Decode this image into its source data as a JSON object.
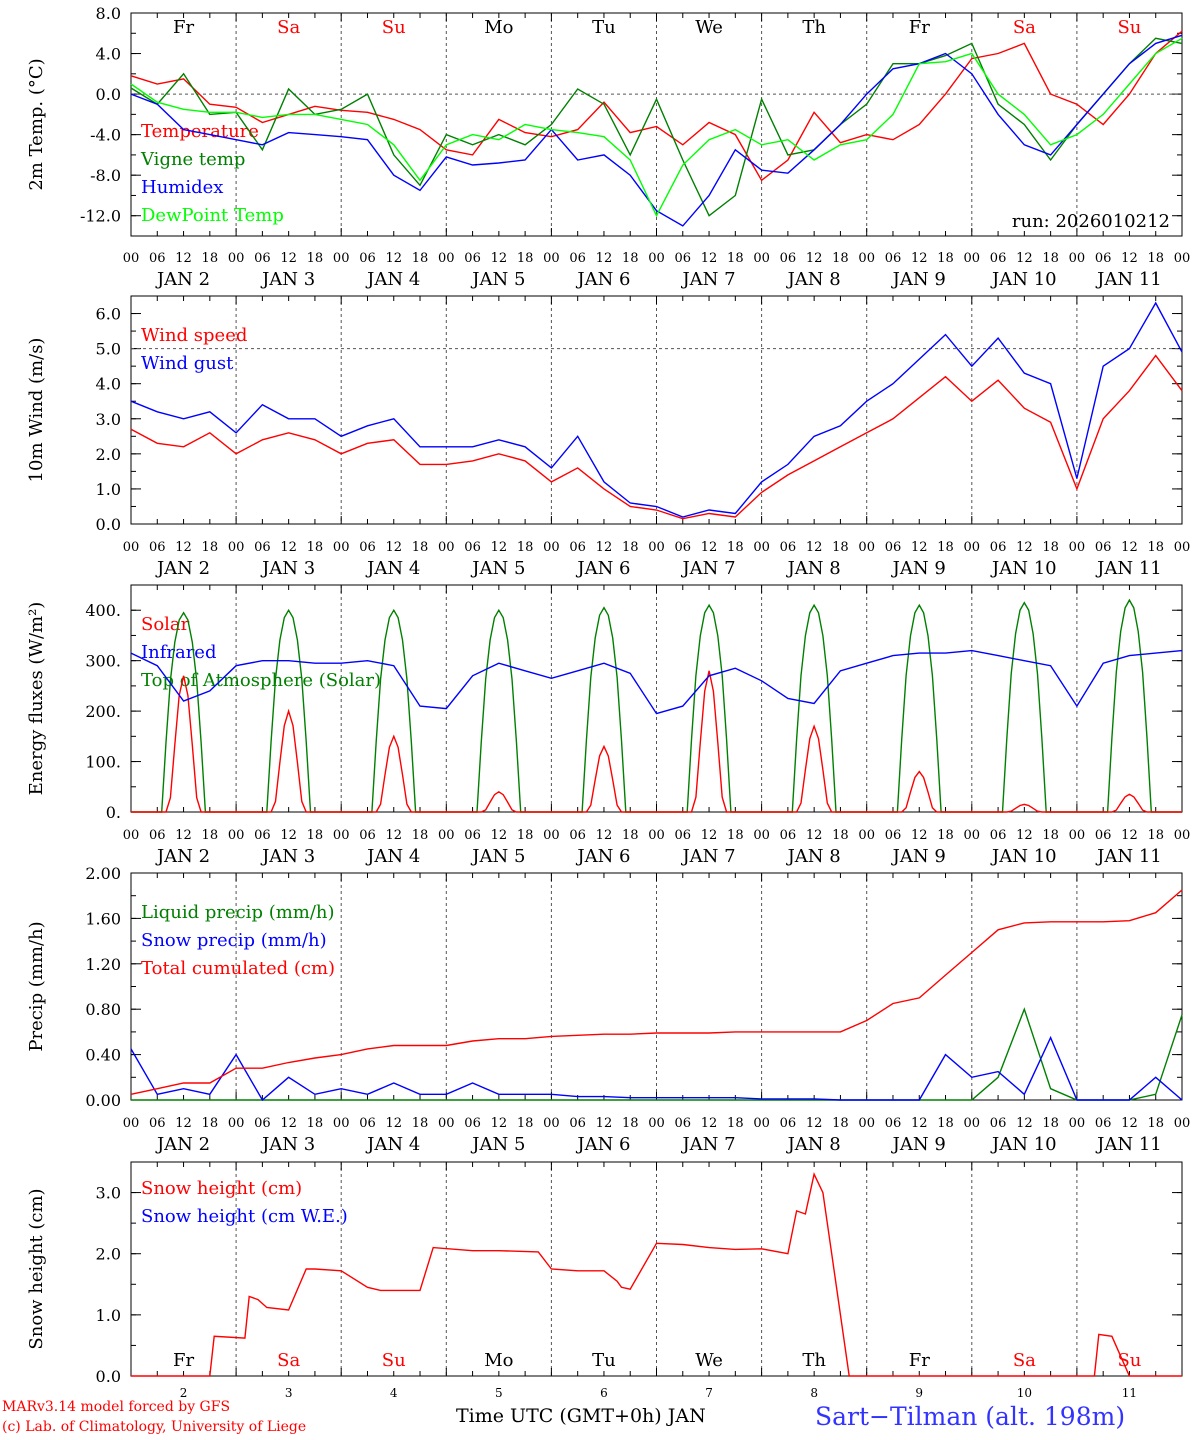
{
  "run_label": "run: 2026010212",
  "footer": {
    "credit_line1": "MARv3.14 model forced by GFS",
    "credit_line2": "(c) Lab. of Climatology, University of Liege",
    "xaxis_title": "Time UTC (GMT+0h) JAN",
    "station": "Sart−Tilman (alt. 198m)"
  },
  "hour_ticks": [
    "00",
    "06",
    "12",
    "18"
  ],
  "day_labels": [
    "JAN  2",
    "JAN  3",
    "JAN  4",
    "JAN  5",
    "JAN  6",
    "JAN  7",
    "JAN  8",
    "JAN  9",
    "JAN 10",
    "JAN 11"
  ],
  "weekdays": [
    "Fr",
    "Sa",
    "Su",
    "Mo",
    "Tu",
    "We",
    "Th",
    "Fr",
    "Sa",
    "Su"
  ],
  "weekday_colors": [
    "#000000",
    "#ff0000",
    "#ff0000",
    "#000000",
    "#000000",
    "#000000",
    "#000000",
    "#000000",
    "#ff0000",
    "#ff0000"
  ],
  "bottom_day_numbers": [
    "2",
    "3",
    "4",
    "5",
    "6",
    "7",
    "8",
    "9",
    "10",
    "11"
  ],
  "colors": {
    "red": "#ff0000",
    "green": "#008000",
    "blue": "#0000ff",
    "lightgreen": "#00ff00"
  },
  "chart_data": [
    {
      "type": "line",
      "ylabel": "2m Temp. (°C)",
      "ylim": [
        -14,
        8
      ],
      "yticks": [
        "8.0",
        "4.0",
        "0.0",
        "-4.0",
        "-8.0",
        "-12.0"
      ],
      "x_unit": "hours since JAN 2 00 UTC",
      "x": [
        0,
        6,
        12,
        18,
        24,
        30,
        36,
        42,
        48,
        54,
        60,
        66,
        72,
        78,
        84,
        90,
        96,
        102,
        108,
        114,
        120,
        126,
        132,
        138,
        144,
        150,
        156,
        162,
        168,
        174,
        180,
        186,
        192,
        198,
        204,
        210,
        216,
        222,
        228,
        234,
        240
      ],
      "series": [
        {
          "name": "Temperature",
          "color": "red",
          "values": [
            1.8,
            1.0,
            1.5,
            -1.0,
            -1.3,
            -2.8,
            -2.0,
            -1.2,
            -1.6,
            -1.8,
            -2.5,
            -3.5,
            -5.5,
            -6.0,
            -2.5,
            -3.8,
            -4.2,
            -3.5,
            -0.8,
            -3.8,
            -3.2,
            -5.0,
            -2.8,
            -4.0,
            -8.5,
            -6.5,
            -1.8,
            -4.8,
            -4.0,
            -4.5,
            -3.0,
            0.0,
            3.5,
            4.0,
            5.0,
            0.0,
            -1.0,
            -3.0,
            0.0,
            4.0,
            6.2
          ]
        },
        {
          "name": "Vigne temp",
          "color": "green",
          "values": [
            0.6,
            -1.0,
            2.0,
            -2.0,
            -1.8,
            -5.5,
            0.5,
            -2.0,
            -1.5,
            0.0,
            -6.0,
            -9.0,
            -4.0,
            -5.0,
            -4.0,
            -5.0,
            -3.0,
            0.5,
            -1.0,
            -6.0,
            -0.5,
            -6.5,
            -12.0,
            -10.0,
            -0.5,
            -6.0,
            -5.5,
            -3.0,
            -1.0,
            3.0,
            3.0,
            3.8,
            5.0,
            -1.0,
            -3.0,
            -6.5,
            -3.0,
            0.0,
            3.0,
            5.5,
            5.0
          ]
        },
        {
          "name": "Humidex",
          "color": "blue",
          "values": [
            0.0,
            -1.0,
            -3.5,
            -4.0,
            -4.5,
            -5.0,
            -3.8,
            -4.0,
            -4.2,
            -4.5,
            -8.0,
            -9.5,
            -6.2,
            -7.0,
            -6.8,
            -6.5,
            -3.5,
            -6.5,
            -6.0,
            -8.0,
            -11.5,
            -13.0,
            -10.0,
            -5.5,
            -7.5,
            -7.8,
            -5.5,
            -3.0,
            0.0,
            2.5,
            3.0,
            4.0,
            2.0,
            -2.0,
            -5.0,
            -6.0,
            -3.0,
            0.0,
            3.0,
            5.0,
            5.8
          ]
        },
        {
          "name": "DewPoint Temp",
          "color": "lightgreen",
          "values": [
            1.0,
            -0.8,
            -1.5,
            -1.8,
            -1.8,
            -2.3,
            -2.0,
            -2.0,
            -2.5,
            -3.0,
            -5.0,
            -8.5,
            -5.0,
            -4.0,
            -4.5,
            -3.0,
            -3.5,
            -3.8,
            -4.2,
            -6.5,
            -12.0,
            -7.0,
            -4.5,
            -3.5,
            -5.0,
            -4.5,
            -6.5,
            -5.0,
            -4.5,
            -2.0,
            3.0,
            3.2,
            4.0,
            0.0,
            -2.0,
            -5.0,
            -4.0,
            -2.0,
            1.0,
            4.0,
            5.5
          ]
        }
      ]
    },
    {
      "type": "line",
      "ylabel": "10m Wind (m/s)",
      "ylim": [
        0,
        6.5
      ],
      "yticks": [
        "6.0",
        "5.0",
        "4.0",
        "3.0",
        "2.0",
        "1.0",
        "0.0"
      ],
      "x_unit": "hours since JAN 2 00 UTC",
      "x": [
        0,
        6,
        12,
        18,
        24,
        30,
        36,
        42,
        48,
        54,
        60,
        66,
        72,
        78,
        84,
        90,
        96,
        102,
        108,
        114,
        120,
        126,
        132,
        138,
        144,
        150,
        156,
        162,
        168,
        174,
        180,
        186,
        192,
        198,
        204,
        210,
        216,
        222,
        228,
        234,
        240
      ],
      "series": [
        {
          "name": "Wind speed",
          "color": "red",
          "values": [
            2.7,
            2.3,
            2.2,
            2.6,
            2.0,
            2.4,
            2.6,
            2.4,
            2.0,
            2.3,
            2.4,
            1.7,
            1.7,
            1.8,
            2.0,
            1.8,
            1.2,
            1.6,
            1.0,
            0.5,
            0.4,
            0.15,
            0.3,
            0.2,
            0.9,
            1.4,
            1.8,
            2.2,
            2.6,
            3.0,
            3.6,
            4.2,
            3.5,
            4.1,
            3.3,
            2.9,
            1.0,
            3.0,
            3.8,
            4.8,
            3.8
          ]
        },
        {
          "name": "Wind gust",
          "color": "blue",
          "values": [
            3.5,
            3.2,
            3.0,
            3.2,
            2.6,
            3.4,
            3.0,
            3.0,
            2.5,
            2.8,
            3.0,
            2.2,
            2.2,
            2.2,
            2.4,
            2.2,
            1.6,
            2.5,
            1.2,
            0.6,
            0.5,
            0.2,
            0.4,
            0.3,
            1.2,
            1.7,
            2.5,
            2.8,
            3.5,
            4.0,
            4.7,
            5.4,
            4.5,
            5.3,
            4.3,
            4.0,
            1.3,
            4.5,
            5.0,
            6.3,
            4.9
          ]
        }
      ]
    },
    {
      "type": "line",
      "ylabel": "Energy fluxes (W/m²)",
      "ylim": [
        0,
        450
      ],
      "yticks": [
        "400.",
        "300.",
        "200.",
        "100.",
        "0."
      ],
      "x_unit": "hours since JAN 2 00 UTC",
      "solar_peak_values": [
        270,
        200,
        150,
        40,
        130,
        280,
        170,
        80,
        15,
        35
      ],
      "toa_peak_values": [
        395,
        400,
        400,
        400,
        405,
        410,
        410,
        410,
        415,
        420
      ],
      "series": [
        {
          "name": "Solar",
          "color": "red"
        },
        {
          "name": "Infrared",
          "color": "blue",
          "x": [
            0,
            6,
            12,
            18,
            24,
            30,
            36,
            42,
            48,
            54,
            60,
            66,
            72,
            78,
            84,
            90,
            96,
            102,
            108,
            114,
            120,
            126,
            132,
            138,
            144,
            150,
            156,
            162,
            168,
            174,
            180,
            186,
            192,
            198,
            204,
            210,
            216,
            222,
            228,
            234,
            240
          ],
          "values": [
            315,
            290,
            220,
            240,
            290,
            300,
            300,
            295,
            295,
            300,
            290,
            210,
            205,
            270,
            295,
            280,
            265,
            280,
            295,
            275,
            195,
            210,
            270,
            285,
            260,
            225,
            215,
            280,
            295,
            310,
            315,
            315,
            320,
            310,
            300,
            290,
            210,
            295,
            310,
            315,
            320
          ]
        },
        {
          "name": "Top of Atmosphere (Solar)",
          "color": "green"
        }
      ]
    },
    {
      "type": "line",
      "ylabel": "Precip (mm/h)",
      "ylim": [
        0,
        2.0
      ],
      "yticks": [
        "2.00",
        "1.60",
        "1.20",
        "0.80",
        "0.40",
        "0.00"
      ],
      "x_unit": "hours since JAN 2 00 UTC",
      "x": [
        0,
        6,
        12,
        18,
        24,
        30,
        36,
        42,
        48,
        54,
        60,
        66,
        72,
        78,
        84,
        90,
        96,
        102,
        108,
        114,
        120,
        126,
        132,
        138,
        144,
        150,
        156,
        162,
        168,
        174,
        180,
        186,
        192,
        198,
        204,
        210,
        216,
        222,
        228,
        234,
        240
      ],
      "series": [
        {
          "name": "Liquid precip (mm/h)",
          "color": "green",
          "values": [
            0,
            0,
            0,
            0,
            0,
            0,
            0,
            0,
            0,
            0,
            0,
            0,
            0,
            0,
            0,
            0,
            0,
            0,
            0,
            0,
            0,
            0,
            0,
            0,
            0,
            0,
            0,
            0,
            0,
            0,
            0,
            0,
            0,
            0.2,
            0.8,
            0.1,
            0,
            0,
            0,
            0.05,
            0.75
          ]
        },
        {
          "name": "Snow precip (mm/h)",
          "color": "blue",
          "values": [
            0.45,
            0.05,
            0.1,
            0.05,
            0.4,
            0.0,
            0.2,
            0.05,
            0.1,
            0.05,
            0.15,
            0.05,
            0.05,
            0.15,
            0.05,
            0.05,
            0.05,
            0.03,
            0.03,
            0.02,
            0.02,
            0.02,
            0.02,
            0.02,
            0.01,
            0.01,
            0.01,
            0.0,
            0.0,
            0.0,
            0.0,
            0.4,
            0.2,
            0.25,
            0.05,
            0.55,
            0.0,
            0.0,
            0.0,
            0.2,
            0.0
          ]
        },
        {
          "name": "Total cumulated (cm)",
          "color": "red",
          "values": [
            0.05,
            0.1,
            0.15,
            0.15,
            0.28,
            0.28,
            0.33,
            0.37,
            0.4,
            0.45,
            0.48,
            0.48,
            0.48,
            0.52,
            0.54,
            0.54,
            0.56,
            0.57,
            0.58,
            0.58,
            0.59,
            0.59,
            0.59,
            0.6,
            0.6,
            0.6,
            0.6,
            0.6,
            0.7,
            0.85,
            0.9,
            1.1,
            1.3,
            1.5,
            1.56,
            1.57,
            1.57,
            1.57,
            1.58,
            1.65,
            1.85
          ]
        }
      ]
    },
    {
      "type": "line",
      "ylabel": "Snow height (cm)",
      "ylim": [
        0,
        3.5
      ],
      "yticks": [
        "3.0",
        "2.0",
        "1.0",
        "0.0"
      ],
      "x_unit": "hours since JAN 2 00 UTC",
      "x": [
        0,
        12,
        18,
        19,
        26,
        27,
        29,
        31,
        36,
        40,
        42,
        48,
        54,
        57,
        66,
        69,
        78,
        84,
        93,
        96,
        102,
        108,
        111,
        112,
        114,
        120,
        126,
        132,
        138,
        144,
        150,
        152,
        154,
        156,
        158,
        160,
        164,
        168,
        174,
        180,
        204,
        220,
        221,
        224,
        228,
        240
      ],
      "series": [
        {
          "name": "Snow height (cm)",
          "color": "red",
          "values": [
            0,
            0,
            0,
            0.65,
            0.62,
            1.3,
            1.25,
            1.12,
            1.08,
            1.75,
            1.75,
            1.72,
            1.45,
            1.4,
            1.4,
            2.1,
            2.05,
            2.05,
            2.03,
            1.75,
            1.72,
            1.72,
            1.55,
            1.45,
            1.42,
            2.17,
            2.15,
            2.1,
            2.07,
            2.08,
            2.0,
            2.7,
            2.65,
            3.3,
            3.0,
            2.0,
            0.0,
            0,
            0,
            0,
            0,
            0,
            0.68,
            0.65,
            0,
            0
          ]
        },
        {
          "name": "Snow height (cm W.E.)",
          "color": "blue"
        }
      ]
    }
  ]
}
